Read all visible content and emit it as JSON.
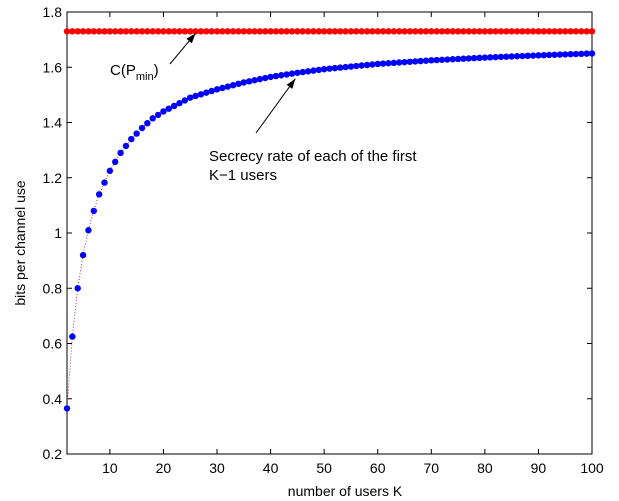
{
  "chart_data": {
    "type": "scatter",
    "title": "",
    "xlabel": "number of users K",
    "ylabel": "bits per channel use",
    "xlim": [
      2,
      100
    ],
    "ylim": [
      0.2,
      1.8
    ],
    "xticks": [
      10,
      20,
      30,
      40,
      50,
      60,
      70,
      80,
      90,
      100
    ],
    "yticks": [
      0.2,
      0.4,
      0.6,
      0.8,
      1,
      1.2,
      1.4,
      1.6,
      1.8
    ],
    "grid": false,
    "legend": "none",
    "series": [
      {
        "key": "capacity",
        "color": "#ff0000",
        "marker": "dot",
        "constant_value": 1.73,
        "x_start": 2,
        "x_end": 100
      },
      {
        "key": "secrecy",
        "color": "#0000ff",
        "marker": "dot",
        "line_style": "dotted",
        "line_color": "#aa3366",
        "x": [
          2,
          3,
          4,
          5,
          6,
          7,
          8,
          10,
          12,
          14,
          16,
          18,
          20,
          25,
          30,
          35,
          40,
          45,
          50,
          60,
          70,
          80,
          90,
          100
        ],
        "y": [
          0.365,
          0.625,
          0.8,
          0.92,
          1.01,
          1.08,
          1.14,
          1.225,
          1.29,
          1.34,
          1.38,
          1.415,
          1.44,
          1.49,
          1.52,
          1.545,
          1.565,
          1.58,
          1.593,
          1.612,
          1.625,
          1.635,
          1.643,
          1.65
        ]
      }
    ],
    "annotations": [
      {
        "key": "cap_annotation",
        "text_main": "C(P",
        "text_sub": "min",
        "text_close": ")",
        "arrow_to": [
          26,
          1.73
        ]
      },
      {
        "key": "secrecy_annotation",
        "lines": [
          "Secrecy rate of each of the first",
          "K−1 users"
        ],
        "arrow_to": [
          45,
          1.573
        ]
      }
    ]
  }
}
